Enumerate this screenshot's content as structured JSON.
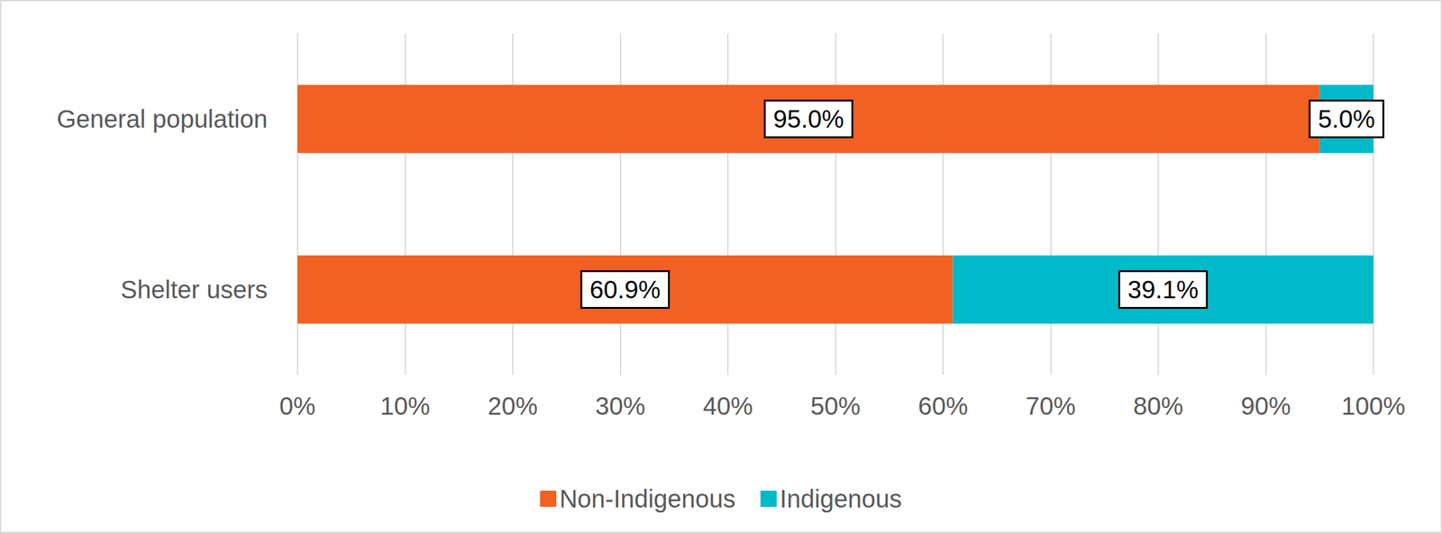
{
  "chart_data": {
    "type": "bar",
    "orientation": "horizontal",
    "stacked": true,
    "categories": [
      "General population",
      "Shelter users"
    ],
    "series": [
      {
        "name": "Non-Indigenous",
        "color": "#F06123",
        "values": [
          95.0,
          60.9
        ],
        "value_labels": [
          "95.0%",
          "60.9%"
        ]
      },
      {
        "name": "Indigenous",
        "color": "#00B9C8",
        "values": [
          5.0,
          39.1
        ],
        "value_labels": [
          "5.0%",
          "39.1%"
        ]
      }
    ],
    "xlim": [
      0,
      100
    ],
    "xticks": [
      {
        "value": 0,
        "label": "0%"
      },
      {
        "value": 10,
        "label": "10%"
      },
      {
        "value": 20,
        "label": "20%"
      },
      {
        "value": 30,
        "label": "30%"
      },
      {
        "value": 40,
        "label": "40%"
      },
      {
        "value": 50,
        "label": "50%"
      },
      {
        "value": 60,
        "label": "60%"
      },
      {
        "value": 70,
        "label": "70%"
      },
      {
        "value": 80,
        "label": "80%"
      },
      {
        "value": 90,
        "label": "90%"
      },
      {
        "value": 100,
        "label": "100%"
      }
    ],
    "grid": true,
    "legend": "bottom",
    "data_labels": true
  }
}
